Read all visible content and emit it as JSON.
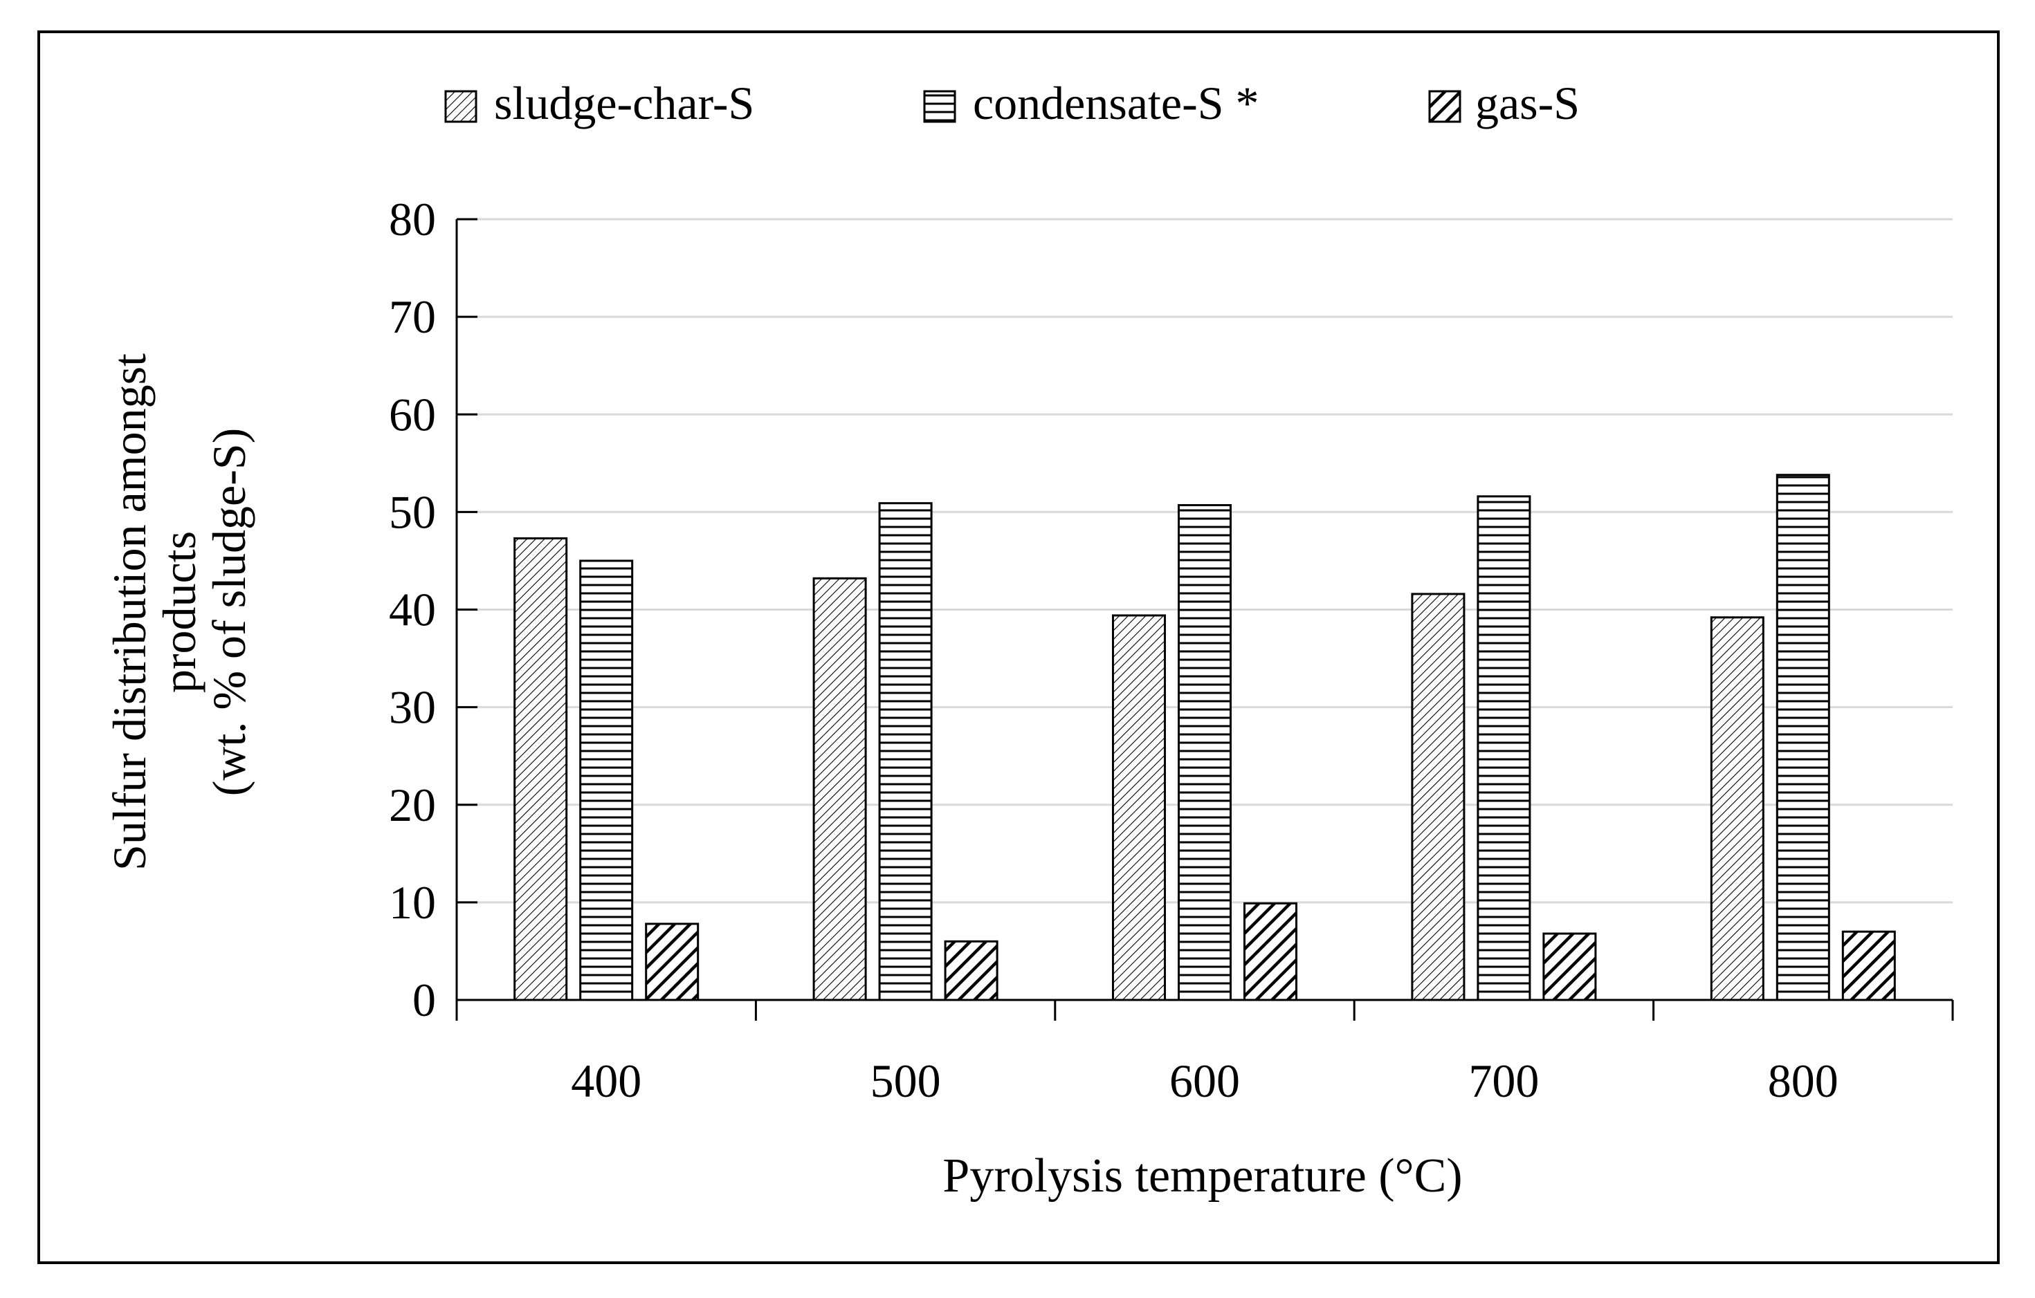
{
  "chart_data": {
    "type": "bar",
    "title": "",
    "xlabel": "Pyrolysis temperature (°C)",
    "ylabel_lines": [
      "Sulfur distribution amongst",
      "products",
      "(wt. % of sludge-S)"
    ],
    "categories": [
      "400",
      "500",
      "600",
      "700",
      "800"
    ],
    "series": [
      {
        "name": "sludge-char-S",
        "pattern": "diag-fine",
        "values": [
          47.3,
          43.2,
          39.4,
          41.6,
          39.2
        ]
      },
      {
        "name": "condensate-S *",
        "pattern": "horizontal",
        "values": [
          45.0,
          50.9,
          50.7,
          51.6,
          53.8
        ]
      },
      {
        "name": "gas-S",
        "pattern": "diag-bold",
        "values": [
          7.8,
          6.0,
          9.9,
          6.8,
          7.0
        ]
      }
    ],
    "ylim": [
      0,
      80
    ],
    "yticks": [
      "0",
      "10",
      "20",
      "30",
      "40",
      "50",
      "60",
      "70",
      "80"
    ],
    "grid": true,
    "legend_position": "top"
  },
  "colors": {
    "bar_stroke": "#000000",
    "grid": "#d9d9d9",
    "axis": "#000000",
    "frame": "#000000"
  }
}
